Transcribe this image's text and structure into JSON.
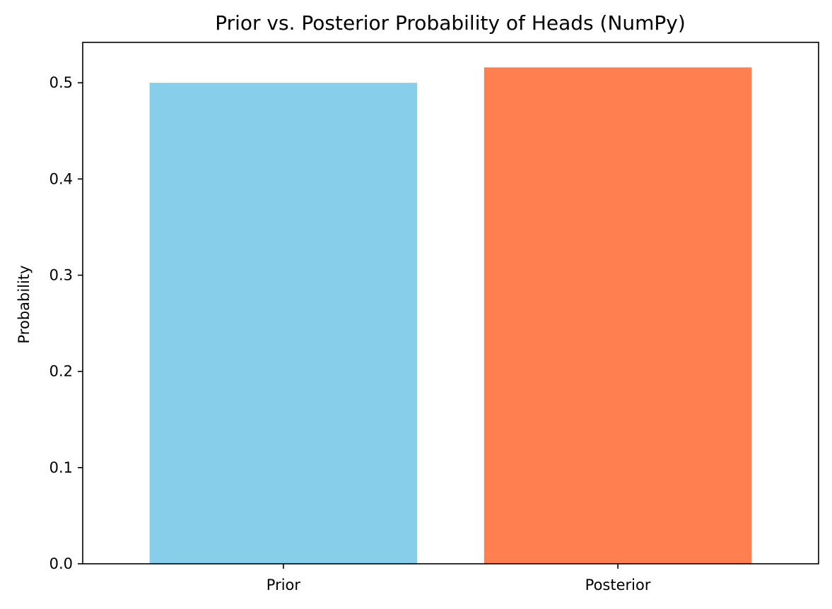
{
  "chart_data": {
    "type": "bar",
    "title": "Prior vs. Posterior Probability of Heads (NumPy)",
    "xlabel": "",
    "ylabel": "Probability",
    "categories": [
      "Prior",
      "Posterior"
    ],
    "values": [
      0.5,
      0.516
    ],
    "colors": [
      "#87CEEB",
      "#FF7F50"
    ],
    "ylim": [
      0,
      0.542
    ],
    "yticks": [
      0.0,
      0.1,
      0.2,
      0.3,
      0.4,
      0.5
    ],
    "ytick_labels": [
      "0.0",
      "0.1",
      "0.2",
      "0.3",
      "0.4",
      "0.5"
    ],
    "grid": false,
    "legend": "none"
  }
}
